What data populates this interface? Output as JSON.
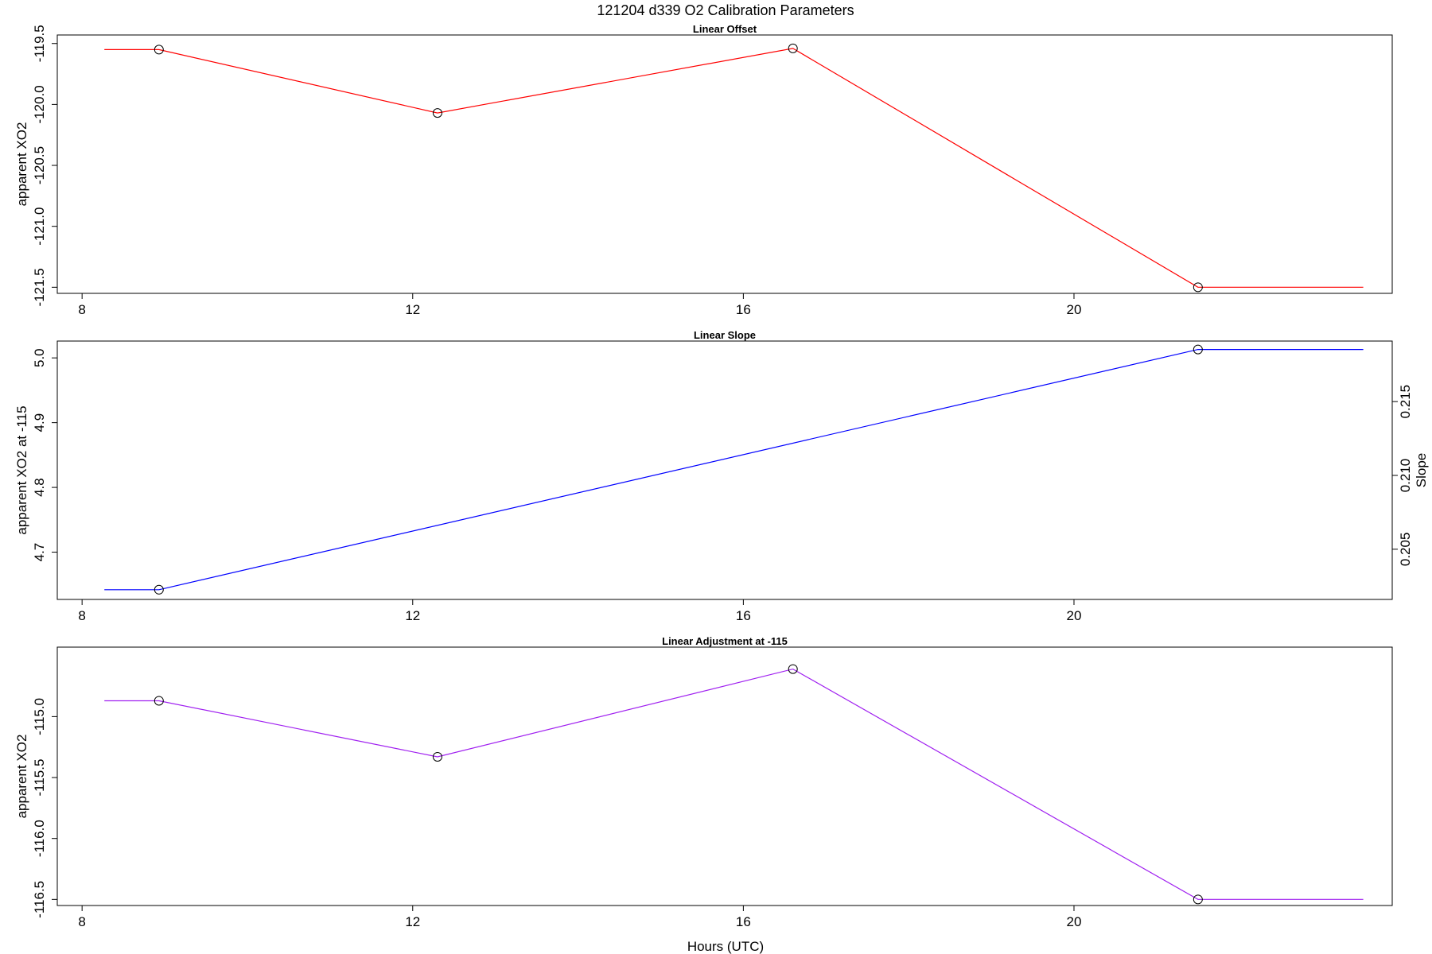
{
  "title": "121204   d339   O2 Calibration Parameters",
  "xlabel": "Hours (UTC)",
  "chart_data": [
    {
      "type": "line",
      "title": "Linear Offset",
      "ylabel": "apparent XO2",
      "color": "#ff0000",
      "xlim": [
        7.7,
        23.85
      ],
      "ylim": [
        -121.55,
        -119.43
      ],
      "xticks": [
        "8",
        "12",
        "16",
        "20"
      ],
      "yticks": [
        "-119.5",
        "-120.0",
        "-120.5",
        "-121.0",
        "-121.5"
      ],
      "series": [
        {
          "x": [
            8.27,
            8.93,
            12.3,
            16.6,
            21.5,
            23.5
          ],
          "y": [
            -119.55,
            -119.55,
            -120.07,
            -119.54,
            -121.5,
            -121.5
          ],
          "markers": [
            1,
            2,
            3,
            4
          ]
        }
      ]
    },
    {
      "type": "line",
      "title": "Linear Slope",
      "ylabel": "apparent XO2 at -115",
      "y2label": "Slope",
      "color": "#0000ff",
      "xlim": [
        7.7,
        23.85
      ],
      "ylim": [
        4.627,
        5.026
      ],
      "y2lim": [
        0.2016,
        0.2191
      ],
      "xticks": [
        "8",
        "12",
        "16",
        "20"
      ],
      "yticks": [
        "4.7",
        "4.8",
        "4.9",
        "5.0"
      ],
      "y2ticks": [
        "0.205",
        "0.210",
        "0.215"
      ],
      "series": [
        {
          "x": [
            8.27,
            8.93,
            21.5,
            23.5
          ],
          "y": [
            4.642,
            4.642,
            5.013,
            5.013
          ],
          "markers": [
            1,
            2
          ]
        }
      ]
    },
    {
      "type": "line",
      "title": "Linear Adjustment at -115",
      "ylabel": "apparent XO2",
      "color": "#a020f0",
      "xlim": [
        7.7,
        23.85
      ],
      "ylim": [
        -116.55,
        -114.43
      ],
      "xticks": [
        "8",
        "12",
        "16",
        "20"
      ],
      "yticks": [
        "-115.0",
        "-115.5",
        "-116.0",
        "-116.5"
      ],
      "series": [
        {
          "x": [
            8.27,
            8.93,
            12.3,
            16.6,
            21.5,
            23.5
          ],
          "y": [
            -114.87,
            -114.87,
            -115.33,
            -114.61,
            -116.5,
            -116.5
          ],
          "markers": [
            1,
            2,
            3,
            4
          ]
        }
      ]
    }
  ]
}
